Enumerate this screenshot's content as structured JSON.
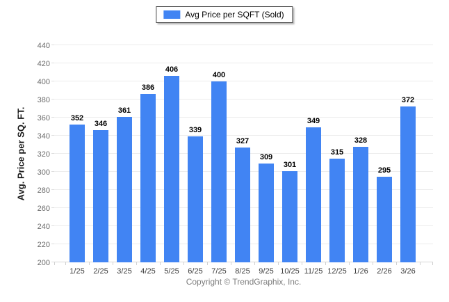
{
  "legend": {
    "label": "Avg Price per SQFT (Sold)"
  },
  "footer": {
    "copyright": "Copyright © TrendGraphix, Inc."
  },
  "chart_data": {
    "type": "bar",
    "title": "",
    "xlabel": "",
    "ylabel": "Avg. Price per SQ. FT.",
    "categories": [
      "1/25",
      "2/25",
      "3/25",
      "4/25",
      "5/25",
      "6/25",
      "7/25",
      "8/25",
      "9/25",
      "10/25",
      "11/25",
      "12/25",
      "1/26",
      "2/26",
      "3/26"
    ],
    "series": [
      {
        "name": "Avg Price per SQFT (Sold)",
        "values": [
          352,
          346,
          361,
          386,
          406,
          339,
          400,
          327,
          309,
          301,
          349,
          315,
          328,
          295,
          372
        ]
      }
    ],
    "value_labels": true,
    "ylim": [
      200,
      440
    ],
    "yticks": [
      200,
      220,
      240,
      260,
      280,
      300,
      320,
      340,
      360,
      380,
      400,
      420,
      440
    ],
    "grid": "horizontal",
    "legend_position": "top-center",
    "colors": {
      "bar": "#4184F3",
      "gridline": "#ececec",
      "baseline": "#d7d7d7",
      "ytick_label": "#6b6b6b",
      "xtick_label": "#3c3c3c",
      "value_label": "#000000",
      "footer_text": "#7d7d7d"
    }
  }
}
